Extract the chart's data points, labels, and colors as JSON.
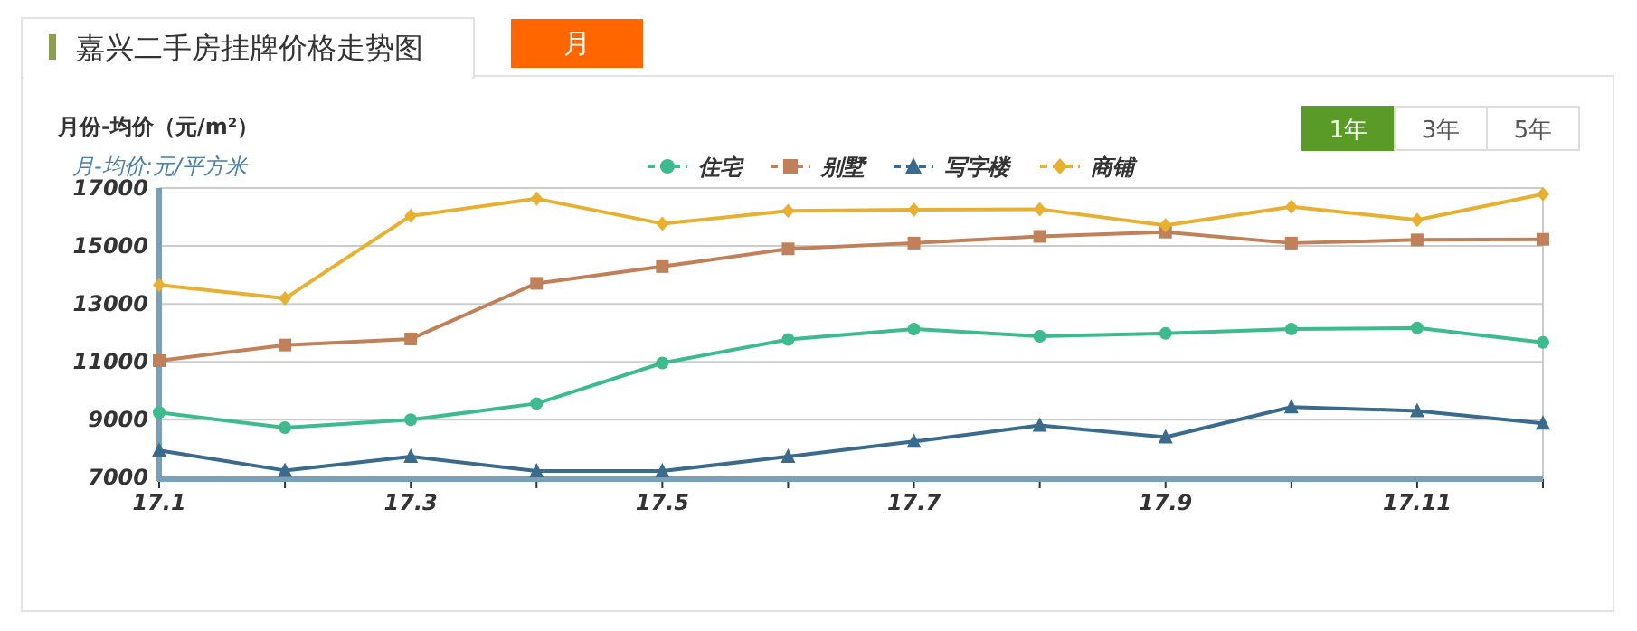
{
  "chart_data": {
    "type": "line",
    "title": "嘉兴二手房挂牌价格走势图",
    "subtitle": "月份-均价（元/m²）",
    "ylabel": "月-均价:元/平方米",
    "annotations": [
      "月",
      "1年",
      "3年",
      "5年"
    ],
    "categories": [
      "17.1",
      null,
      "17.3",
      null,
      "17.5",
      null,
      "17.7",
      null,
      "17.9",
      null,
      "17.11",
      null
    ],
    "series": [
      {
        "name": "住宅",
        "color": "#3dbb8f",
        "marker": "circle",
        "values": [
          9250,
          8730,
          9000,
          9560,
          10960,
          11770,
          12130,
          11880,
          11980,
          12130,
          12170,
          11670
        ]
      },
      {
        "name": "别墅",
        "color": "#c0805a",
        "marker": "square",
        "values": [
          11040,
          11580,
          11790,
          13710,
          14290,
          14900,
          15100,
          15330,
          15480,
          15100,
          15210,
          15230
        ]
      },
      {
        "name": "写字楼",
        "color": "#3a6a8c",
        "marker": "triangle",
        "values": [
          7940,
          7250,
          7730,
          7230,
          7230,
          7730,
          8250,
          8810,
          8400,
          9440,
          9310,
          8880
        ]
      },
      {
        "name": "商铺",
        "color": "#e8b030",
        "marker": "diamond",
        "values": [
          13650,
          13190,
          16040,
          16630,
          15770,
          16210,
          16250,
          16270,
          15710,
          16350,
          15900,
          16790
        ]
      }
    ],
    "ylim": [
      6950,
      17000
    ],
    "yticks": [
      7000,
      9000,
      11000,
      13000,
      15000,
      17000
    ],
    "grid": "y",
    "legend": "top",
    "line_style": "solid"
  }
}
